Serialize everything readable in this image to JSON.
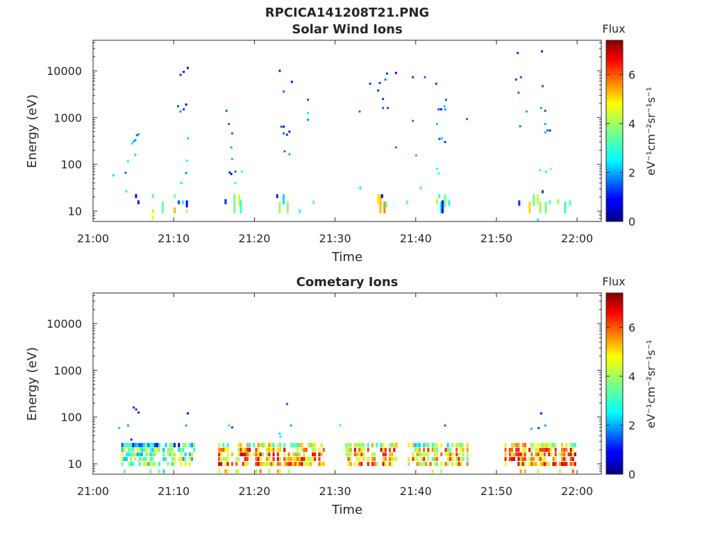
{
  "figure_title": "RPCICA141208T21.PNG",
  "colorbar": {
    "title": "Flux",
    "label": "eV⁻¹cm⁻²sr⁻¹s⁻¹",
    "range": [
      0,
      7.4
    ],
    "ticks": [
      "0",
      "2",
      "4",
      "6"
    ],
    "tick_values": [
      0,
      2,
      4,
      6
    ],
    "colormap": "jet"
  },
  "chart_data": [
    {
      "type": "heatmap",
      "title": "Solar Wind Ions",
      "xlabel": "Time",
      "ylabel": "Energy (eV)",
      "xlim": [
        "21:00",
        "22:03"
      ],
      "ylim": [
        6,
        45000
      ],
      "y_scale": "log",
      "x_ticks": [
        "21:00",
        "21:10",
        "21:20",
        "21:30",
        "21:40",
        "21:50",
        "22:00"
      ],
      "y_ticks": [
        "10",
        "100",
        "1000",
        "10000"
      ],
      "grid": false,
      "points": [
        [
          "21:02.5",
          58,
          2.3
        ],
        [
          "21:04.0",
          66,
          1.6
        ],
        [
          "21:04.3",
          115,
          2.6
        ],
        [
          "21:04.8",
          280,
          2.4
        ],
        [
          "21:05.0",
          310,
          2.1
        ],
        [
          "21:05.2",
          330,
          1.8
        ],
        [
          "21:05.4",
          420,
          1.6
        ],
        [
          "21:05.6",
          440,
          2.0
        ],
        [
          "21:05.2",
          160,
          2.3
        ],
        [
          "21:10.5",
          1750,
          1.4
        ],
        [
          "21:10.8",
          1350,
          1.8
        ],
        [
          "21:11.2",
          1500,
          1.3
        ],
        [
          "21:11.5",
          1900,
          0.9
        ],
        [
          "21:10.8",
          8200,
          1.2
        ],
        [
          "21:11.2",
          9500,
          1.0
        ],
        [
          "21:11.7",
          11500,
          0.5
        ],
        [
          "21:11.7",
          360,
          2.3
        ],
        [
          "21:11.5",
          65,
          1.8
        ],
        [
          "21:11.6",
          120,
          2.5
        ],
        [
          "21:10.9",
          40,
          2.5
        ],
        [
          "21:16.5",
          1400,
          1.6
        ],
        [
          "21:16.8",
          730,
          1.6
        ],
        [
          "21:17.2",
          460,
          1.5
        ],
        [
          "21:17.1",
          230,
          2.0
        ],
        [
          "21:17.2",
          130,
          2.1
        ],
        [
          "21:17.6",
          70,
          1.6
        ],
        [
          "21:17.6",
          40,
          2.8
        ],
        [
          "21:16.9",
          67,
          1.2
        ],
        [
          "21:17.1",
          62,
          0.9
        ],
        [
          "21:18.4",
          70,
          2.9
        ],
        [
          "21:23.1",
          10000,
          1.0
        ],
        [
          "21:23.6",
          3600,
          1.5
        ],
        [
          "21:24.6",
          5800,
          0.8
        ],
        [
          "21:23.3",
          640,
          1.5
        ],
        [
          "21:23.6",
          640,
          1.0
        ],
        [
          "21:23.6",
          460,
          1.6
        ],
        [
          "21:24.0",
          430,
          1.2
        ],
        [
          "21:24.3",
          500,
          0.9
        ],
        [
          "21:23.7",
          190,
          1.6
        ],
        [
          "21:24.3",
          165,
          2.0
        ],
        [
          "21:26.6",
          2400,
          1.4
        ],
        [
          "21:26.6",
          900,
          1.9
        ],
        [
          "21:26.6",
          1250,
          2.5
        ],
        [
          "21:33.0",
          1350,
          1.6
        ],
        [
          "21:34.3",
          5300,
          1.3
        ],
        [
          "21:35.5",
          5500,
          1.3
        ],
        [
          "21:36.2",
          6500,
          1.7
        ],
        [
          "21:36.4",
          8700,
          1.3
        ],
        [
          "21:37.5",
          9000,
          0.8
        ],
        [
          "21:35.3",
          3800,
          1.3
        ],
        [
          "21:35.9",
          2500,
          1.3
        ],
        [
          "21:36.5",
          1600,
          1.4
        ],
        [
          "21:35.9",
          1600,
          1.6
        ],
        [
          "21:37.5",
          230,
          1.7
        ],
        [
          "21:39.6",
          850,
          1.7
        ],
        [
          "21:39.6",
          7300,
          1.2
        ],
        [
          "21:40.0",
          155,
          2.1
        ],
        [
          "21:41.1",
          7300,
          1.6
        ],
        [
          "21:42.5",
          5300,
          1.3
        ],
        [
          "21:42.8",
          1500,
          1.5
        ],
        [
          "21:43.1",
          1500,
          0.9
        ],
        [
          "21:43.6",
          1500,
          1.9
        ],
        [
          "21:43.7",
          2400,
          1.4
        ],
        [
          "21:43.5",
          1750,
          2.2
        ],
        [
          "21:42.6",
          730,
          2.2
        ],
        [
          "21:43.2",
          360,
          2.3
        ],
        [
          "21:42.9",
          350,
          1.4
        ],
        [
          "21:43.6",
          300,
          1.3
        ],
        [
          "21:42.6",
          80,
          2.8
        ],
        [
          "21:42.8",
          64,
          2.9
        ],
        [
          "21:46.3",
          930,
          1.7
        ],
        [
          "21:52.4",
          6500,
          1.4
        ],
        [
          "21:52.6",
          24000,
          1.2
        ],
        [
          "21:53.0",
          7300,
          1.5
        ],
        [
          "21:53.7",
          1350,
          2.0
        ],
        [
          "21:52.7",
          3400,
          1.6
        ],
        [
          "21:52.9",
          650,
          1.7
        ],
        [
          "21:55.6",
          26000,
          1.0
        ],
        [
          "21:55.7",
          4700,
          1.4
        ],
        [
          "21:55.5",
          1600,
          1.9
        ],
        [
          "21:56.0",
          1400,
          1.5
        ],
        [
          "21:56.0",
          730,
          2.0
        ],
        [
          "21:56.0",
          480,
          2.1
        ],
        [
          "21:56.3",
          530,
          1.5
        ],
        [
          "21:56.6",
          530,
          1.2
        ],
        [
          "21:55.4",
          75,
          2.6
        ],
        [
          "21:56.1",
          70,
          2.7
        ],
        [
          "21:56.7",
          80,
          3.6
        ]
      ],
      "columns": [
        [
          "21:04.0",
          25,
          28,
          2.6
        ],
        [
          "21:05.2",
          19,
          23,
          1.0
        ],
        [
          "21:05.5",
          14,
          17,
          0.9
        ],
        [
          "21:07.3",
          9,
          11,
          5.0
        ],
        [
          "21:07.3",
          6.5,
          8,
          4.6
        ],
        [
          "21:07.3",
          19,
          23,
          3.4
        ],
        [
          "21:08.5",
          9,
          16,
          3.4
        ],
        [
          "21:10.0",
          19,
          23,
          3.8
        ],
        [
          "21:10.0",
          9,
          12,
          5.3
        ],
        [
          "21:10.5",
          14,
          17,
          1.4
        ],
        [
          "21:11.0",
          14,
          17,
          2.6
        ],
        [
          "21:11.5",
          12,
          17,
          0.8
        ],
        [
          "21:11.5",
          9,
          11,
          4.2
        ],
        [
          "21:16.3",
          14,
          18,
          1.2
        ],
        [
          "21:17.4",
          9,
          23,
          3.6
        ],
        [
          "21:18.0",
          13,
          23,
          4.5
        ],
        [
          "21:18.2",
          9,
          17,
          3.0
        ],
        [
          "21:22.7",
          19,
          23,
          1.1
        ],
        [
          "21:23.0",
          9,
          16,
          4.0
        ],
        [
          "21:23.5",
          14,
          23,
          2.3
        ],
        [
          "21:24.0",
          9,
          16,
          3.9
        ],
        [
          "21:25.5",
          9,
          11,
          3.2
        ],
        [
          "21:27.2",
          14,
          17,
          3.5
        ],
        [
          "21:33.0",
          29,
          34,
          2.9
        ],
        [
          "21:35.2",
          14,
          23,
          4.9
        ],
        [
          "21:35.5",
          9,
          23,
          5.3
        ],
        [
          "21:35.7",
          19,
          23,
          1.0
        ],
        [
          "21:36.0",
          9,
          16,
          5.7
        ],
        [
          "21:36.2",
          12,
          16,
          3.3
        ],
        [
          "21:38.8",
          14,
          17,
          3.4
        ],
        [
          "21:40.5",
          29,
          34,
          3.2
        ],
        [
          "21:42.5",
          14,
          18,
          4.3
        ],
        [
          "21:42.8",
          19,
          23,
          3.0
        ],
        [
          "21:43.0",
          9,
          16,
          2.5
        ],
        [
          "21:43.2",
          9,
          17,
          0.6
        ],
        [
          "21:43.5",
          12,
          23,
          3.6
        ],
        [
          "21:44.0",
          13,
          17,
          2.9
        ],
        [
          "21:52.7",
          13,
          17,
          1.2
        ],
        [
          "21:54.0",
          9,
          16,
          5.1
        ],
        [
          "21:54.5",
          13,
          23,
          3.5
        ],
        [
          "21:55.0",
          14,
          23,
          4.3
        ],
        [
          "21:55.3",
          9,
          16,
          3.9
        ],
        [
          "21:55.6",
          24,
          28,
          1.3
        ],
        [
          "21:56.0",
          9,
          16,
          3.6
        ],
        [
          "21:56.5",
          14,
          17,
          3.2
        ],
        [
          "21:57.5",
          14,
          18,
          4.0
        ],
        [
          "21:58.4",
          9,
          16,
          2.9
        ],
        [
          "21:59.0",
          13,
          17,
          3.4
        ],
        [
          "21:55.0",
          5.8,
          7,
          2.7
        ]
      ]
    },
    {
      "type": "heatmap",
      "title": "Cometary Ions",
      "xlabel": "Time",
      "ylabel": "Energy (eV)",
      "xlim": [
        "21:00",
        "22:03"
      ],
      "ylim": [
        6,
        45000
      ],
      "y_scale": "log",
      "x_ticks": [
        "21:00",
        "21:10",
        "21:20",
        "21:30",
        "21:40",
        "21:50",
        "22:00"
      ],
      "y_ticks": [
        "10",
        "100",
        "1000",
        "10000"
      ],
      "grid": false,
      "points": [
        [
          "21:03.2",
          58,
          2.2
        ],
        [
          "21:04.3",
          66,
          1.9
        ],
        [
          "21:04.7",
          33,
          1.1
        ],
        [
          "21:05.0",
          160,
          1.2
        ],
        [
          "21:05.3",
          145,
          1.1
        ],
        [
          "21:05.6",
          125,
          1.0
        ],
        [
          "21:11.5",
          66,
          2.0
        ],
        [
          "21:11.7",
          120,
          0.7
        ],
        [
          "21:16.8",
          66,
          2.4
        ],
        [
          "21:17.2",
          60,
          1.3
        ],
        [
          "21:24.0",
          190,
          1.5
        ],
        [
          "21:24.5",
          66,
          1.9
        ],
        [
          "21:23.1",
          44,
          2.3
        ],
        [
          "21:23.2",
          38,
          2.5
        ],
        [
          "21:30.6",
          67,
          2.6
        ],
        [
          "21:43.6",
          66,
          1.5
        ],
        [
          "21:55.5",
          120,
          1.0
        ],
        [
          "21:56.0",
          66,
          1.9
        ],
        [
          "21:54.3",
          56,
          2.1
        ],
        [
          "21:55.2",
          58,
          1.3
        ]
      ],
      "bands": [
        [
          "21:03.5",
          "21:12.5",
          9,
          28,
          3.6
        ],
        [
          "21:15.5",
          "21:28.5",
          9,
          28,
          5.4
        ],
        [
          "21:31.0",
          "21:38.0",
          9,
          28,
          5.2
        ],
        [
          "21:39.0",
          "21:46.5",
          9,
          28,
          4.8
        ],
        [
          "21:51.0",
          "22:00.0",
          9,
          28,
          5.6
        ]
      ]
    }
  ]
}
